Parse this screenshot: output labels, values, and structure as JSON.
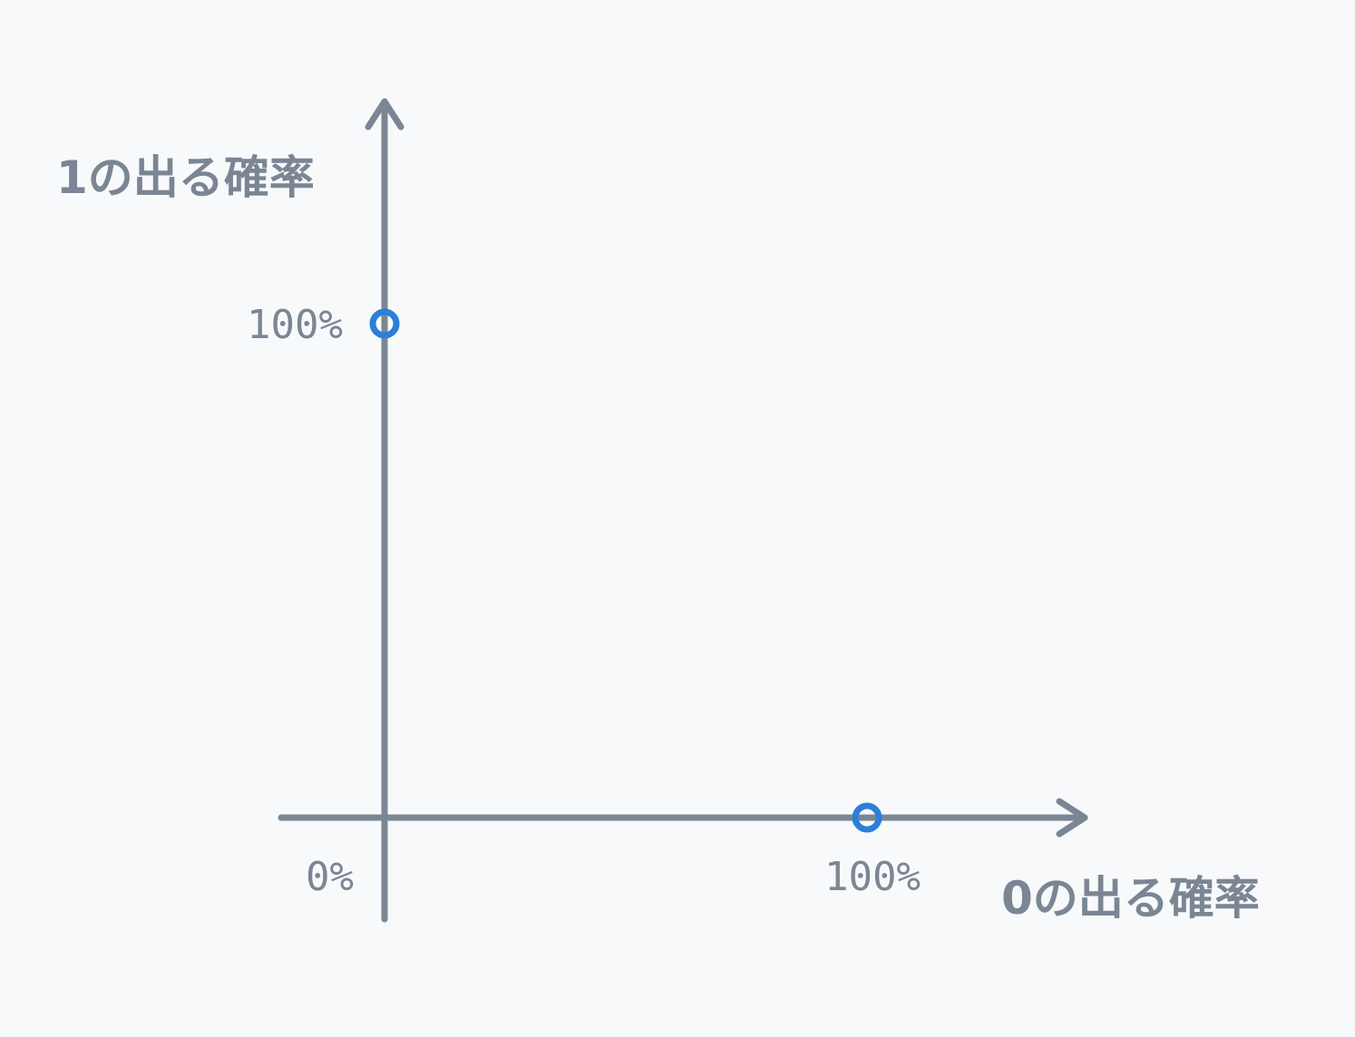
{
  "chart_data": {
    "type": "scatter",
    "x_label": "0の出る確率",
    "y_label": "1の出る確率",
    "origin_label": "0%",
    "x_tick_label": "100%",
    "y_tick_label": "100%",
    "points": [
      {
        "x": 0,
        "y": 100
      },
      {
        "x": 100,
        "y": 0
      }
    ],
    "xlim": [
      0,
      100
    ],
    "ylim": [
      0,
      100
    ],
    "point_color": "#2b7fd8",
    "axis_color": "#7b8694"
  }
}
